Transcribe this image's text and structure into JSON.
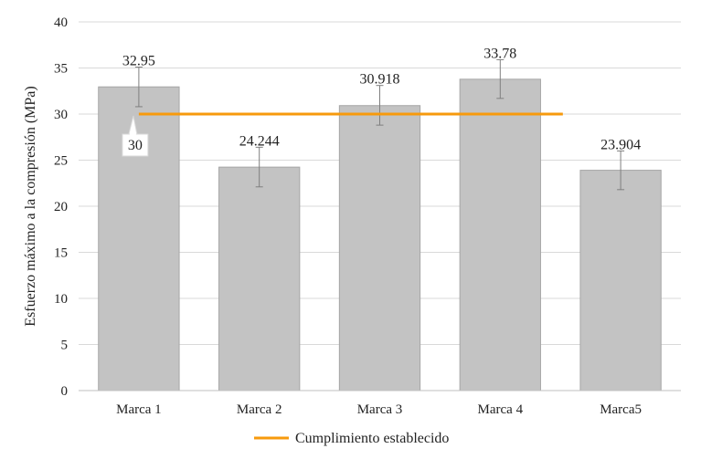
{
  "chart_data": {
    "type": "bar",
    "title": "",
    "ylabel": "Esfuerzo máximo a la compresión (MPa)",
    "xlabel": "",
    "ylim": [
      0,
      40
    ],
    "yticks": [
      0,
      5,
      10,
      15,
      20,
      25,
      30,
      35,
      40
    ],
    "grid": true,
    "categories": [
      "Marca 1",
      "Marca 2",
      "Marca 3",
      "Marca 4",
      "Marca5"
    ],
    "values": [
      32.95,
      24.244,
      30.918,
      33.78,
      23.904
    ],
    "value_labels": [
      "32.95",
      "24.244",
      "30.918",
      "33.78",
      "23.904"
    ],
    "error_bars": [
      {
        "low": 30.8,
        "high": 35.1
      },
      {
        "low": 22.1,
        "high": 26.4
      },
      {
        "low": 28.8,
        "high": 33.1
      },
      {
        "low": 31.7,
        "high": 35.9
      },
      {
        "low": 21.8,
        "high": 26.0
      }
    ],
    "reference_line": {
      "name": "Cumplimiento establecido",
      "value": 30,
      "label": "30",
      "from_category": 0,
      "to_category": 3
    },
    "legend_position": "bottom",
    "colors": {
      "bar_fill": "#c3c3c3",
      "bar_stroke": "#a6a6a6",
      "gridline": "#d9d9d9",
      "axis": "#bfbfbf",
      "error_bar": "#7f7f7f",
      "reference_line": "#f79a0c"
    }
  }
}
